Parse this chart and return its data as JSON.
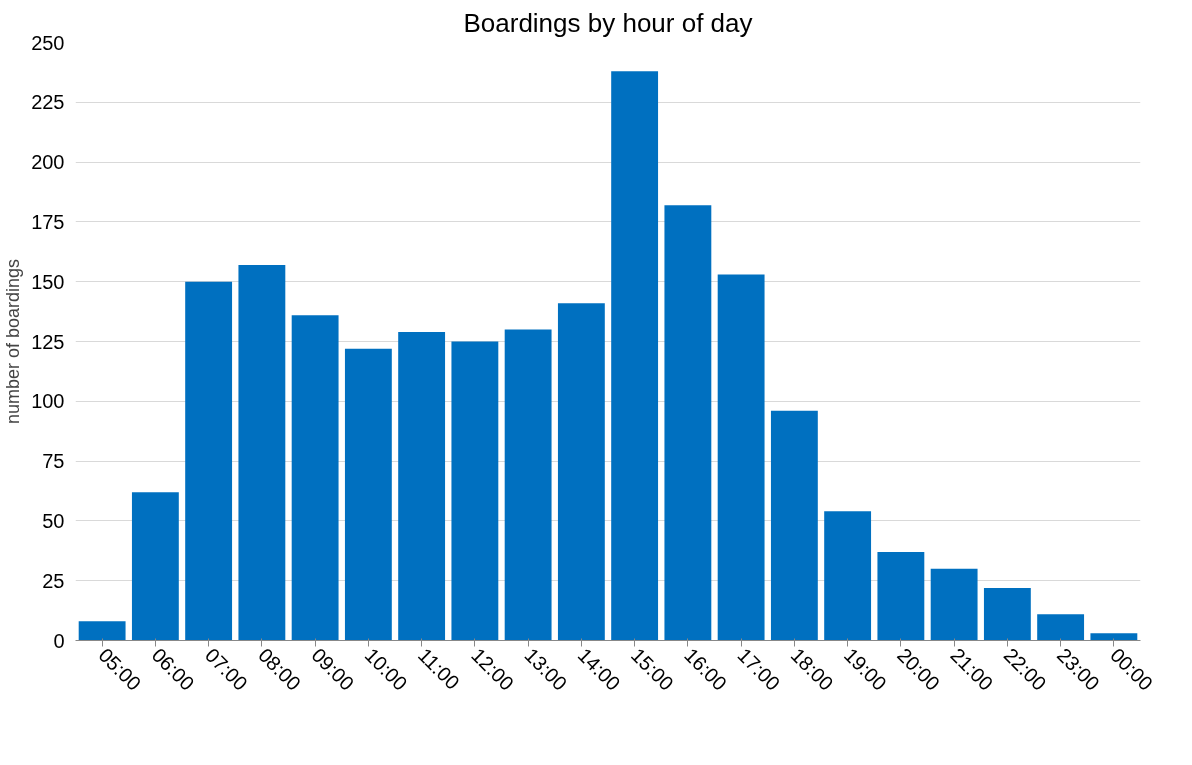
{
  "chart_data": {
    "type": "bar",
    "title": "Boardings by hour of day",
    "ylabel": "number of boardings",
    "categories": [
      "05:00",
      "06:00",
      "07:00",
      "08:00",
      "09:00",
      "10:00",
      "11:00",
      "12:00",
      "13:00",
      "14:00",
      "15:00",
      "16:00",
      "17:00",
      "18:00",
      "19:00",
      "20:00",
      "21:00",
      "22:00",
      "23:00",
      "00:00"
    ],
    "values": [
      8,
      62,
      150,
      157,
      136,
      122,
      129,
      125,
      130,
      141,
      238,
      182,
      153,
      96,
      54,
      37,
      30,
      22,
      11,
      3
    ],
    "color": "#0070c0",
    "ylim": [
      0,
      250
    ],
    "yticks": [
      0,
      25,
      50,
      75,
      100,
      125,
      150,
      175,
      200,
      225,
      250
    ],
    "grid": "y"
  }
}
